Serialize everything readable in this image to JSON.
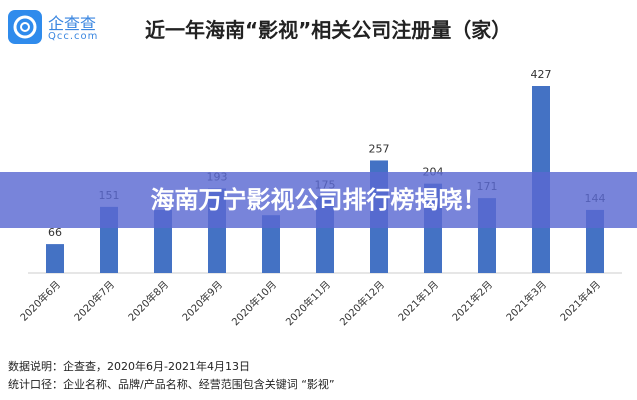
{
  "logo": {
    "name": "企查查",
    "domain": "Qcc.com"
  },
  "banner": "海南万宁影视公司排行榜揭晓！",
  "footer": {
    "line1": "数据说明：企查查，2020年6月-2021年4月13日",
    "line2": "统计口径：企业名称、品牌/产品名称、经营范围包含关键词 “影视”"
  },
  "chart_data": {
    "type": "bar",
    "title": "近一年海南“影视”相关公司注册量（家）",
    "categories": [
      "2020年6月",
      "2020年7月",
      "2020年8月",
      "2020年9月",
      "2020年10月",
      "2020年11月",
      "2020年12月",
      "2021年1月",
      "2021年2月",
      "2021年3月",
      "2021年4月"
    ],
    "values": [
      66,
      151,
      144,
      193,
      132,
      175,
      257,
      204,
      171,
      427,
      144
    ],
    "data_labels": [
      "66",
      "151",
      null,
      "193",
      null,
      "175",
      "257",
      "204",
      "171",
      "427",
      "144"
    ],
    "bar_color": "#4472c4",
    "ylim": [
      0,
      427
    ],
    "grid": false
  }
}
